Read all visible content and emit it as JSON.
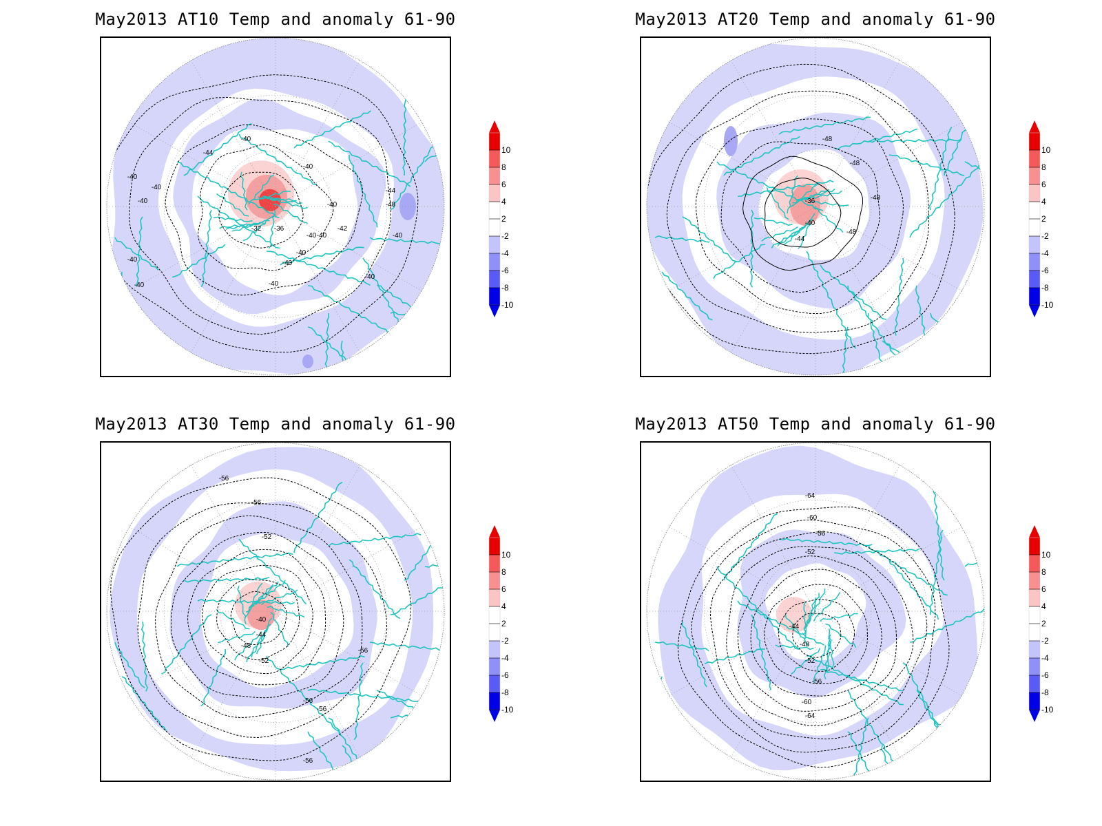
{
  "panels": [
    {
      "id": "at10",
      "title": "May2013 AT10 Temp and anomaly 61-90",
      "contour_labels": [
        "-44",
        "-40",
        "-40",
        "-40",
        "-40",
        "-40",
        "-40",
        "-40",
        "-40",
        "-40",
        "-40",
        "-40",
        "-40",
        "-44",
        "-48",
        "-40",
        "-40",
        "-32",
        "-36",
        "-40",
        "-42"
      ]
    },
    {
      "id": "at20",
      "title": "May2013 AT20 Temp and anomaly 61-90",
      "contour_labels": [
        "-48",
        "-48",
        "-48",
        "-36",
        "-40",
        "-44",
        "-48"
      ]
    },
    {
      "id": "at30",
      "title": "May2013 AT30 Temp and anomaly 61-90",
      "contour_labels": [
        "-56",
        "-56",
        "-52",
        "-40",
        "-44",
        "-48",
        "-52",
        "-56",
        "-56",
        "-56",
        "-56"
      ]
    },
    {
      "id": "at50",
      "title": "May2013 AT50 Temp and anomaly 61-90",
      "contour_labels": [
        "-64",
        "-60",
        "-56",
        "-52",
        "-44",
        "-48",
        "-52",
        "-56",
        "-60",
        "-64"
      ]
    }
  ],
  "colorbar": {
    "labels": [
      "10",
      "8",
      "6",
      "4",
      "2",
      "-2",
      "-4",
      "-6",
      "-8",
      "-10"
    ],
    "colors": [
      "#e60000",
      "#f55a5a",
      "#f99090",
      "#fcc4c4",
      "#ffffff",
      "#ffffff",
      "#c4c4fc",
      "#9090f9",
      "#5a5af5",
      "#0000e6"
    ],
    "top_color": "#e60000",
    "bottom_color": "#0000e6"
  },
  "style": {
    "coast_color": "#1ec4c0",
    "neg_anomaly_color": "#d6d6fb",
    "neg_anomaly_strong": "#a8a8f5",
    "pos_anomaly_light": "#fbd3d3",
    "pos_anomaly_mid": "#f5a0a0",
    "pos_anomaly_strong": "#ee4444",
    "grid_color": "#999999",
    "contour_color": "#000000"
  }
}
